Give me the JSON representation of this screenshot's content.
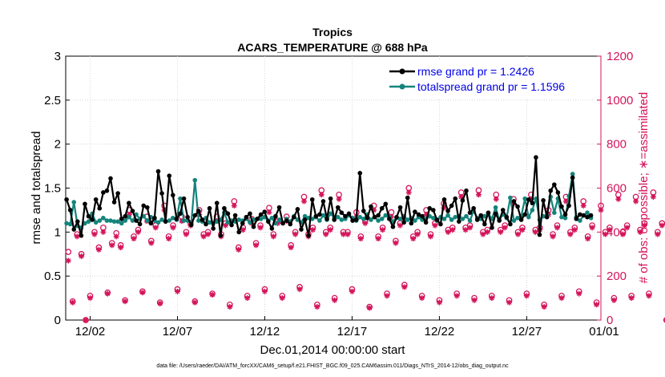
{
  "chart_data": {
    "type": "line",
    "title": "Tropics",
    "subtitle": "ACARS_TEMPERATURE @ 688 hPa",
    "xlabel": "Dec.01,2014 00:00:00 start",
    "ylabel": "rmse and totalspread",
    "y2label": "# of obs: o=possible; ∗=assimilated",
    "xlim": [
      -0.4,
      30.25
    ],
    "ylim": [
      0,
      3
    ],
    "y2lim": [
      0,
      1200
    ],
    "x_ticks": [
      {
        "v": 1,
        "label": "12/02"
      },
      {
        "v": 6,
        "label": "12/07"
      },
      {
        "v": 11,
        "label": "12/12"
      },
      {
        "v": 16,
        "label": "12/17"
      },
      {
        "v": 21,
        "label": "12/22"
      },
      {
        "v": 26,
        "label": "12/27"
      },
      {
        "v": 31,
        "label": "01/01"
      }
    ],
    "y_ticks": [
      {
        "v": 0,
        "label": "0"
      },
      {
        "v": 0.5,
        "label": "0.5"
      },
      {
        "v": 1,
        "label": "1"
      },
      {
        "v": 1.5,
        "label": "1.5"
      },
      {
        "v": 2,
        "label": "2"
      },
      {
        "v": 2.5,
        "label": "2.5"
      },
      {
        "v": 3,
        "label": "3"
      }
    ],
    "y2_ticks": [
      {
        "v": 0,
        "label": "0"
      },
      {
        "v": 200,
        "label": "200"
      },
      {
        "v": 400,
        "label": "400"
      },
      {
        "v": 600,
        "label": "600"
      },
      {
        "v": 800,
        "label": "800"
      },
      {
        "v": 1000,
        "label": "1000"
      },
      {
        "v": 1200,
        "label": "1200"
      }
    ],
    "legend_position": "top-right",
    "series": [
      {
        "name": "rmse grand pr = 1.2426",
        "color": "#000000",
        "values": [
          1.37,
          1.25,
          1.03,
          1.12,
          0.96,
          1.32,
          1.18,
          1.14,
          1.37,
          1.27,
          1.45,
          1.47,
          1.61,
          1.34,
          1.44,
          1.15,
          1.18,
          1.33,
          1.24,
          1.13,
          1.09,
          1.3,
          1.28,
          1.1,
          1.16,
          1.69,
          1.44,
          1.12,
          1.64,
          1.42,
          1.15,
          1.21,
          1.38,
          1.17,
          1.08,
          1.19,
          1.24,
          1.14,
          1.09,
          1.27,
          1.04,
          1.33,
          0.96,
          1.27,
          1.21,
          1.08,
          1.19,
          1.0,
          1.1,
          1.17,
          1.21,
          1.06,
          1.15,
          1.2,
          1.23,
          1.12,
          1.04,
          1.18,
          1.28,
          1.1,
          1.13,
          1.09,
          1.17,
          1.26,
          1.03,
          1.14,
          0.96,
          1.37,
          1.18,
          1.2,
          1.35,
          1.15,
          1.38,
          1.14,
          1.28,
          1.22,
          1.18,
          1.21,
          1.13,
          1.14,
          1.67,
          1.24,
          1.16,
          1.29,
          1.17,
          1.19,
          1.27,
          1.32,
          1.15,
          1.06,
          1.17,
          1.28,
          1.11,
          1.39,
          1.1,
          1.23,
          1.2,
          1.18,
          1.11,
          1.27,
          1.25,
          1.14,
          1.09,
          1.37,
          1.24,
          1.3,
          1.38,
          1.12,
          1.36,
          1.47,
          1.22,
          1.27,
          1.14,
          1.19,
          1.09,
          1.22,
          1.05,
          1.21,
          1.13,
          1.25,
          1.17,
          1.09,
          1.35,
          1.29,
          1.14,
          1.2,
          1.37,
          1.33,
          1.85,
          0.97,
          1.36,
          1.17,
          1.47,
          1.54,
          1.45,
          1.29,
          1.2,
          1.3,
          1.62,
          1.15,
          1.2,
          1.19,
          1.17,
          1.19
        ],
        "x_start": -0.35,
        "x_step": 0.21
      },
      {
        "name": "totalspread grand pr = 1.1596",
        "color": "#14847c",
        "values": [
          1.1,
          1.09,
          1.34,
          1.07,
          1.05,
          1.1,
          1.12,
          1.21,
          1.11,
          1.13,
          1.16,
          1.13,
          1.13,
          1.12,
          1.12,
          1.1,
          1.13,
          1.17,
          1.13,
          1.2,
          1.15,
          1.18,
          1.13,
          1.17,
          1.13,
          1.11,
          1.14,
          1.12,
          1.13,
          1.16,
          1.14,
          1.38,
          1.13,
          1.13,
          1.1,
          1.59,
          1.13,
          1.12,
          1.16,
          1.11,
          1.1,
          1.12,
          1.14,
          1.22,
          1.11,
          1.13,
          1.12,
          1.14,
          1.13,
          1.15,
          1.11,
          1.14,
          1.15,
          1.15,
          1.17,
          1.13,
          1.16,
          1.1,
          1.14,
          1.1,
          1.15,
          1.12,
          1.18,
          1.14,
          1.11,
          1.18,
          1.16,
          1.15,
          1.17,
          1.13,
          1.19,
          1.14,
          1.21,
          1.16,
          1.17,
          1.14,
          1.15,
          1.19,
          1.16,
          1.13,
          1.17,
          1.15,
          1.2,
          1.14,
          1.17,
          1.13,
          1.15,
          1.19,
          1.17,
          1.12,
          1.16,
          1.15,
          1.18,
          1.14,
          1.16,
          1.13,
          1.17,
          1.14,
          1.15,
          1.18,
          1.16,
          1.13,
          1.17,
          1.15,
          1.19,
          1.14,
          1.17,
          1.18,
          1.15,
          1.18,
          1.13,
          1.24,
          1.16,
          1.15,
          1.18,
          1.21,
          1.15,
          1.28,
          1.14,
          1.2,
          1.16,
          1.39,
          1.13,
          1.16,
          1.18,
          1.38,
          1.17,
          1.25,
          1.38,
          1.14,
          1.18,
          1.19,
          1.4,
          1.22,
          1.38,
          1.17,
          1.16,
          1.41,
          1.66,
          1.17,
          1.13,
          1.19,
          1.22,
          1.16
        ],
        "x_start": -0.35,
        "x_step": 0.21
      }
    ],
    "obs_possible": {
      "marker": "o",
      "color": "#d4145a",
      "x_start": -0.25,
      "x_step": 0.25,
      "values": [
        310,
        85,
        390,
        300,
        0,
        110,
        400,
        330,
        420,
        125,
        350,
        395,
        340,
        90,
        500,
        380,
        410,
        130,
        470,
        360,
        430,
        80,
        520,
        380,
        430,
        140,
        470,
        400,
        440,
        85,
        500,
        390,
        400,
        120,
        470,
        390,
        440,
        70,
        540,
        330,
        420,
        110,
        460,
        350,
        430,
        140,
        510,
        390,
        450,
        110,
        470,
        340,
        400,
        150,
        560,
        390,
        420,
        70,
        590,
        400,
        420,
        100,
        570,
        400,
        400,
        140,
        490,
        380,
        450,
        60,
        520,
        380,
        420,
        120,
        490,
        360,
        440,
        160,
        600,
        380,
        400,
        110,
        500,
        390,
        440,
        90,
        530,
        410,
        420,
        120,
        580,
        420,
        430,
        100,
        590,
        400,
        410,
        110,
        570,
        410,
        430,
        90,
        550,
        400,
        420,
        120,
        570,
        410,
        420,
        70,
        500,
        390,
        430,
        110,
        560,
        400,
        420,
        130,
        540,
        380,
        430,
        80,
        520,
        400,
        420,
        100,
        570,
        400,
        430,
        110,
        560,
        410,
        440,
        120,
        580,
        400,
        440,
        0
      ]
    },
    "obs_assimilated": {
      "marker": "*",
      "color": "#d4145a",
      "x_start": -0.25,
      "x_step": 0.25,
      "values": [
        270,
        80,
        380,
        290,
        0,
        100,
        390,
        320,
        400,
        120,
        340,
        380,
        330,
        85,
        480,
        370,
        400,
        125,
        450,
        350,
        420,
        75,
        500,
        370,
        420,
        130,
        450,
        390,
        430,
        80,
        480,
        380,
        390,
        115,
        450,
        380,
        430,
        60,
        520,
        320,
        410,
        100,
        440,
        340,
        420,
        130,
        490,
        380,
        440,
        100,
        450,
        330,
        390,
        140,
        540,
        380,
        410,
        60,
        570,
        390,
        410,
        90,
        550,
        390,
        390,
        130,
        470,
        370,
        440,
        55,
        500,
        370,
        410,
        110,
        470,
        350,
        430,
        150,
        580,
        370,
        390,
        100,
        480,
        380,
        430,
        80,
        510,
        400,
        410,
        110,
        560,
        410,
        420,
        90,
        570,
        390,
        400,
        100,
        550,
        400,
        420,
        80,
        530,
        390,
        410,
        110,
        550,
        400,
        410,
        60,
        480,
        380,
        420,
        100,
        540,
        390,
        410,
        120,
        520,
        370,
        420,
        70,
        500,
        390,
        410,
        90,
        550,
        390,
        420,
        100,
        540,
        400,
        430,
        110,
        560,
        390,
        430,
        0
      ]
    }
  },
  "footer": "data file: /Users/raeder/DAI/ATM_forcXX/CAM6_setup/f.e21.FHIST_BGC.f09_025.CAM6assim.011/Diags_NTrS_2014-12/obs_diag_output.nc",
  "colors": {
    "right_axis": "#d4145a",
    "legend_text": "#0000e6"
  }
}
